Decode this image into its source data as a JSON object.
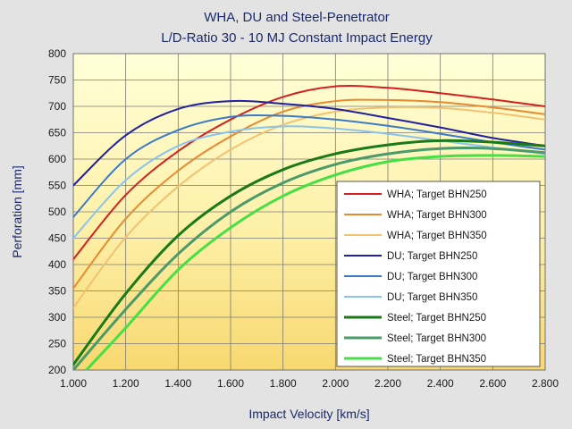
{
  "chart_data": {
    "type": "line",
    "title": "WHA,  DU and  Steel-Penetrator",
    "subtitle": "L/D-Ratio 30  -  10 MJ Constant Impact Energy",
    "xlabel": "Impact Velocity  [km/s]",
    "ylabel": "Perforation  [mm]",
    "xlim": [
      1.0,
      2.8
    ],
    "ylim": [
      200,
      800
    ],
    "xticks": [
      "1.000",
      "1.200",
      "1.400",
      "1.600",
      "1.800",
      "2.000",
      "2.200",
      "2.400",
      "2.600",
      "2.800"
    ],
    "yticks": [
      "200",
      "250",
      "300",
      "350",
      "400",
      "450",
      "500",
      "550",
      "600",
      "650",
      "700",
      "750",
      "800"
    ],
    "grid": true,
    "legend_position": "bottom-right",
    "series": [
      {
        "name": "WHA; Target BHN250",
        "color": "#d42020",
        "x": [
          1.0,
          1.2,
          1.4,
          1.6,
          1.8,
          2.0,
          2.2,
          2.4,
          2.6,
          2.8
        ],
        "values": [
          410,
          532,
          615,
          675,
          718,
          738,
          735,
          725,
          713,
          700
        ]
      },
      {
        "name": "WHA; Target BHN300",
        "color": "#e88a30",
        "x": [
          1.0,
          1.2,
          1.4,
          1.6,
          1.8,
          2.0,
          2.2,
          2.4,
          2.6,
          2.8
        ],
        "values": [
          355,
          487,
          578,
          643,
          690,
          710,
          712,
          708,
          698,
          685
        ]
      },
      {
        "name": "WHA; Target BHN350",
        "color": "#f2c272",
        "x": [
          1.0,
          1.2,
          1.4,
          1.6,
          1.8,
          2.0,
          2.2,
          2.4,
          2.6,
          2.8
        ],
        "values": [
          318,
          452,
          548,
          618,
          665,
          690,
          698,
          697,
          688,
          675
        ]
      },
      {
        "name": "DU;  Target BHN250",
        "color": "#2020a0",
        "x": [
          1.0,
          1.2,
          1.4,
          1.6,
          1.8,
          2.0,
          2.2,
          2.4,
          2.6,
          2.8
        ],
        "values": [
          550,
          645,
          695,
          710,
          705,
          695,
          678,
          660,
          640,
          625
        ]
      },
      {
        "name": "DU;  Target BHN300",
        "color": "#3a7ac8",
        "x": [
          1.0,
          1.2,
          1.4,
          1.6,
          1.8,
          2.0,
          2.2,
          2.4,
          2.6,
          2.8
        ],
        "values": [
          490,
          600,
          655,
          680,
          682,
          675,
          663,
          648,
          632,
          618
        ]
      },
      {
        "name": "DU;  Target BHN350",
        "color": "#8ac4ee",
        "x": [
          1.0,
          1.2,
          1.4,
          1.6,
          1.8,
          2.0,
          2.2,
          2.4,
          2.6,
          2.8
        ],
        "values": [
          450,
          560,
          625,
          652,
          662,
          658,
          648,
          635,
          622,
          610
        ]
      },
      {
        "name": "Steel; Target BHN250",
        "color": "#1a7a1a",
        "x": [
          1.0,
          1.2,
          1.4,
          1.6,
          1.8,
          2.0,
          2.2,
          2.4,
          2.6,
          2.8
        ],
        "values": [
          210,
          345,
          455,
          530,
          580,
          610,
          627,
          635,
          632,
          625
        ]
      },
      {
        "name": "Steel; Target BHN300",
        "color": "#4a9a6a",
        "x": [
          1.0,
          1.2,
          1.4,
          1.6,
          1.8,
          2.0,
          2.2,
          2.4,
          2.6,
          2.8
        ],
        "values": [
          200,
          315,
          420,
          500,
          555,
          590,
          610,
          620,
          620,
          612
        ]
      },
      {
        "name": "Steel; Target BHN350",
        "color": "#44e044",
        "x": [
          1.05,
          1.2,
          1.4,
          1.6,
          1.8,
          2.0,
          2.2,
          2.4,
          2.6,
          2.8
        ],
        "values": [
          200,
          280,
          390,
          470,
          530,
          570,
          595,
          605,
          607,
          605
        ]
      }
    ]
  }
}
